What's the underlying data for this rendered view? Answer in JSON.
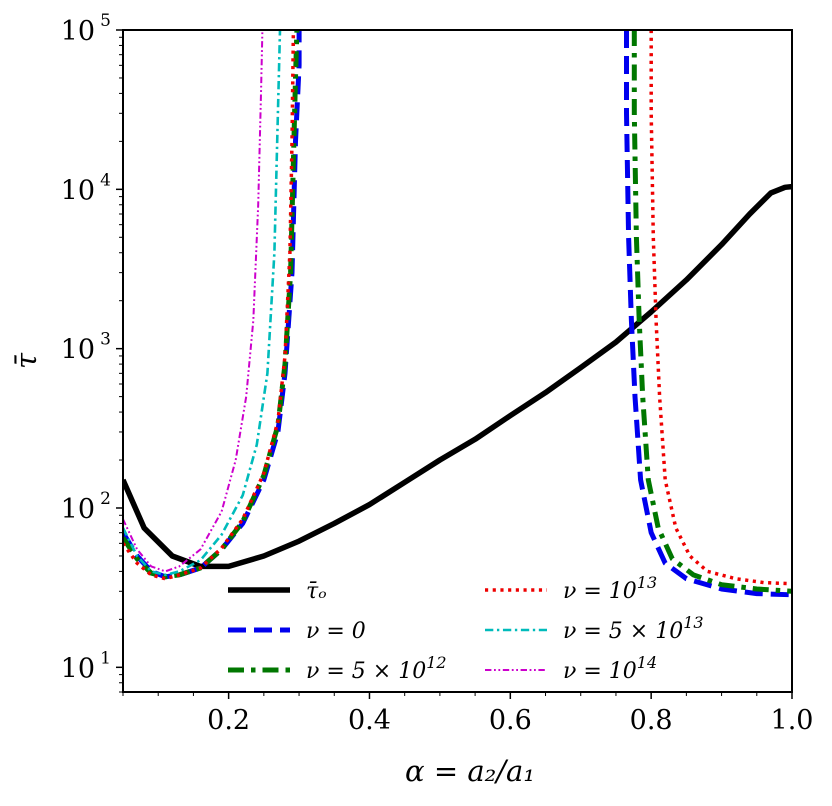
{
  "chart_data": {
    "type": "line",
    "xlabel": "α = a₂/a₁",
    "ylabel": "τ̄",
    "yscale": "log",
    "xlim": [
      0.05,
      1.0
    ],
    "ylim": [
      7,
      100000
    ],
    "x_ticks": [
      "0.2",
      "0.4",
      "0.6",
      "0.8",
      "1.0"
    ],
    "x_tick_values": [
      0.2,
      0.4,
      0.6,
      0.8,
      1.0
    ],
    "y_ticks": [
      {
        "value": 10,
        "base": "10",
        "exp": "1"
      },
      {
        "value": 100,
        "base": "10",
        "exp": "2"
      },
      {
        "value": 1000,
        "base": "10",
        "exp": "3"
      },
      {
        "value": 10000,
        "base": "10",
        "exp": "4"
      },
      {
        "value": 100000,
        "base": "10",
        "exp": "5"
      }
    ],
    "legend_position": "lower-center",
    "series": [
      {
        "name": "τ̄ₒ",
        "legend_main": "τ̄ₒ",
        "legend_sup": "",
        "color": "#000000",
        "style": "solid",
        "width": 5.5,
        "x": [
          0.05,
          0.08,
          0.12,
          0.16,
          0.2,
          0.25,
          0.3,
          0.35,
          0.4,
          0.45,
          0.5,
          0.55,
          0.6,
          0.65,
          0.7,
          0.75,
          0.8,
          0.85,
          0.9,
          0.94,
          0.97,
          0.99,
          1.0
        ],
        "y": [
          150,
          75,
          50,
          43,
          43,
          50,
          62,
          80,
          105,
          145,
          200,
          270,
          380,
          530,
          760,
          1100,
          1700,
          2700,
          4500,
          7000,
          9500,
          10300,
          10400
        ]
      },
      {
        "name": "ν = 0",
        "legend_main": "ν = 0",
        "legend_sup": "",
        "color": "#0000ee",
        "style": "dashed",
        "width": 5,
        "segments": [
          {
            "x": [
              0.05,
              0.07,
              0.09,
              0.11,
              0.13,
              0.16,
              0.19,
              0.22,
              0.25,
              0.27,
              0.28,
              0.29,
              0.295,
              0.3,
              0.3
            ],
            "y": [
              70,
              50,
              40,
              37,
              38,
              42,
              55,
              80,
              150,
              300,
              700,
              3000,
              20000,
              60000,
              100000
            ]
          },
          {
            "x": [
              0.765,
              0.765,
              0.768,
              0.772,
              0.777,
              0.785,
              0.8,
              0.82,
              0.85,
              0.9,
              0.95,
              1.0
            ],
            "y": [
              100000,
              30000,
              5000,
              1500,
              500,
              150,
              70,
              45,
              36,
              31,
              29,
              28.5
            ]
          }
        ]
      },
      {
        "name": "ν = 5 × 10¹²",
        "legend_main": "ν = 5 × 10",
        "legend_sup": "12",
        "color": "#007700",
        "style": "dashdot",
        "width": 5,
        "segments": [
          {
            "x": [
              0.05,
              0.07,
              0.09,
              0.11,
              0.13,
              0.16,
              0.19,
              0.22,
              0.25,
              0.27,
              0.28,
              0.288,
              0.292,
              0.295,
              0.297
            ],
            "y": [
              65,
              48,
              39,
              37,
              38,
              42,
              55,
              82,
              160,
              330,
              800,
              3000,
              15000,
              50000,
              100000
            ]
          },
          {
            "x": [
              0.776,
              0.776,
              0.779,
              0.783,
              0.788,
              0.796,
              0.81,
              0.83,
              0.86,
              0.9,
              0.95,
              1.0
            ],
            "y": [
              100000,
              30000,
              5000,
              1500,
              500,
              150,
              75,
              48,
              38,
              33,
              31,
              30
            ]
          }
        ]
      },
      {
        "name": "ν = 10¹³",
        "legend_main": "ν = 10",
        "legend_sup": "13",
        "color": "#ee0000",
        "style": "dotted",
        "width": 3.5,
        "segments": [
          {
            "x": [
              0.05,
              0.07,
              0.09,
              0.11,
              0.13,
              0.16,
              0.19,
              0.22,
              0.25,
              0.27,
              0.28,
              0.287,
              0.29,
              0.292
            ],
            "y": [
              60,
              45,
              38,
              36,
              38,
              42,
              56,
              85,
              165,
              350,
              900,
              4000,
              20000,
              100000
            ]
          },
          {
            "x": [
              0.8,
              0.8,
              0.803,
              0.807,
              0.812,
              0.82,
              0.835,
              0.855,
              0.88,
              0.92,
              0.96,
              1.0
            ],
            "y": [
              100000,
              30000,
              5000,
              1500,
              500,
              150,
              75,
              50,
              40,
              36,
              34,
              33.5
            ]
          }
        ]
      },
      {
        "name": "ν = 5 × 10¹³",
        "legend_main": "ν = 5 × 10",
        "legend_sup": "13",
        "color": "#00bbbb",
        "style": "dashdot",
        "width": 2.6,
        "segments": [
          {
            "x": [
              0.05,
              0.07,
              0.09,
              0.11,
              0.13,
              0.16,
              0.19,
              0.22,
              0.24,
              0.255,
              0.265,
              0.27,
              0.273
            ],
            "y": [
              75,
              50,
              40,
              38,
              40,
              47,
              68,
              120,
              250,
              700,
              4000,
              30000,
              100000
            ]
          }
        ]
      },
      {
        "name": "ν = 10¹⁴",
        "legend_main": "ν = 10",
        "legend_sup": "14",
        "color": "#cc00cc",
        "style": "dashdotdot",
        "width": 2,
        "segments": [
          {
            "x": [
              0.05,
              0.07,
              0.09,
              0.11,
              0.13,
              0.16,
              0.19,
              0.21,
              0.225,
              0.235,
              0.242,
              0.246,
              0.248
            ],
            "y": [
              85,
              55,
              43,
              40,
              43,
              55,
              95,
              200,
              500,
              1500,
              8000,
              40000,
              100000
            ]
          }
        ]
      }
    ]
  }
}
